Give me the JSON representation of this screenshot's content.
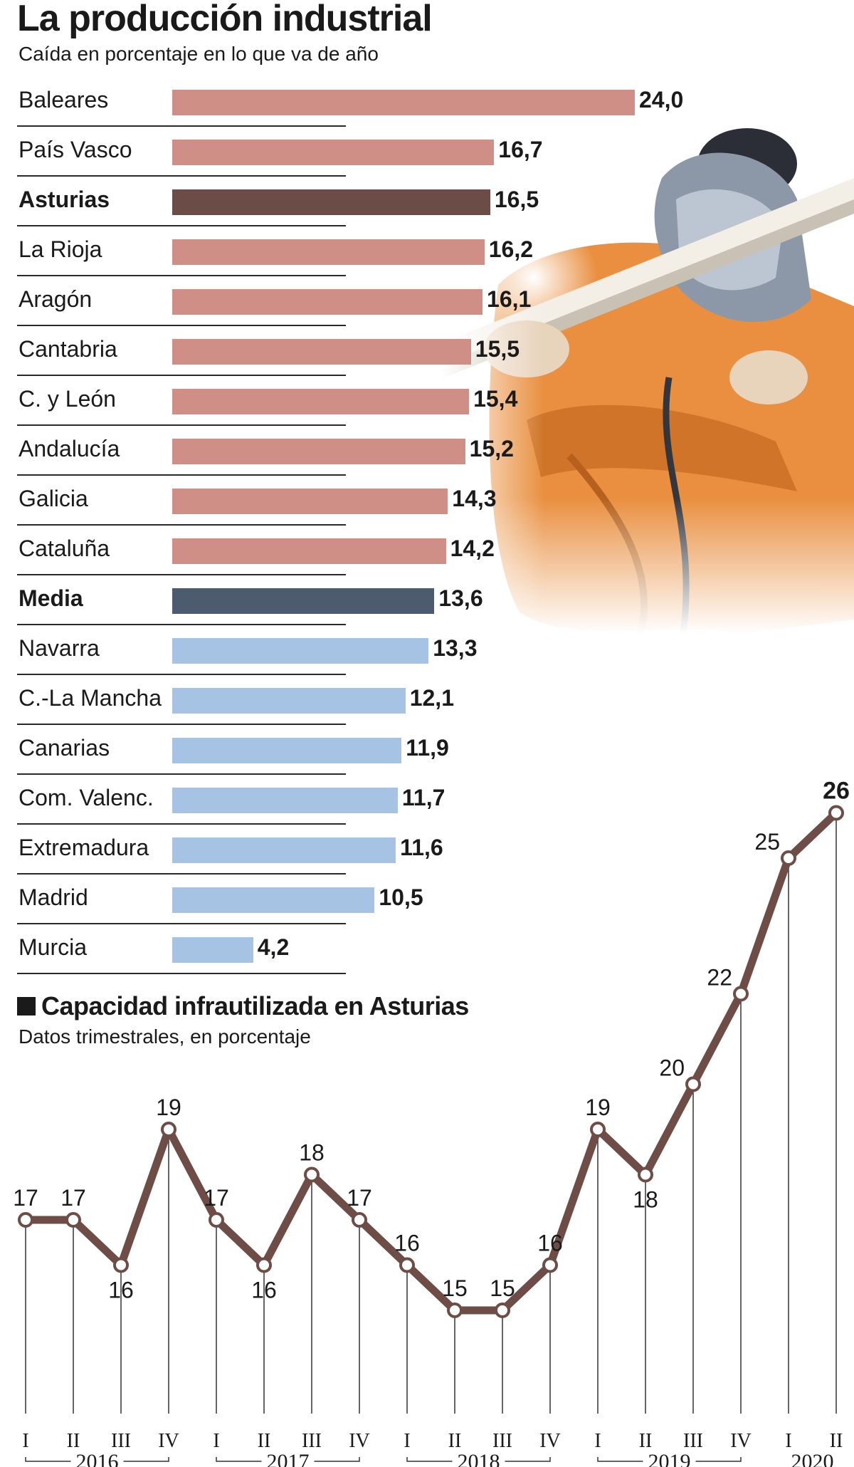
{
  "header": {
    "title": "La producción industrial",
    "subtitle": "Caída en porcentaje en lo que va de año"
  },
  "colors": {
    "above_average": "#cf8f87",
    "highlight": "#6b4c47",
    "average": "#4d5b6e",
    "below_average": "#a6c3e3",
    "line": "#6e4d46",
    "photo": "welder-photo"
  },
  "section2": {
    "title": "Capacidad infrautilizada en Asturias",
    "subtitle": "Datos trimestrales, en porcentaje"
  },
  "chart_data": [
    {
      "type": "bar",
      "orientation": "horizontal",
      "categories": [
        "Baleares",
        "País Vasco",
        "Asturias",
        "La Rioja",
        "Aragón",
        "Cantabria",
        "C. y León",
        "Andalucía",
        "Galicia",
        "Cataluña",
        "Media",
        "Navarra",
        "C.-La Mancha",
        "Canarias",
        "Com. Valenc.",
        "Extremadura",
        "Madrid",
        "Murcia"
      ],
      "values": [
        24.0,
        16.7,
        16.5,
        16.2,
        16.1,
        15.5,
        15.4,
        15.2,
        14.3,
        14.2,
        13.6,
        13.3,
        12.1,
        11.9,
        11.7,
        11.6,
        10.5,
        4.2
      ],
      "value_labels": [
        "24,0",
        "16,7",
        "16,5",
        "16,2",
        "16,1",
        "15,5",
        "15,4",
        "15,2",
        "14,3",
        "14,2",
        "13,6",
        "13,3",
        "12,1",
        "11,9",
        "11,7",
        "11,6",
        "10,5",
        "4,2"
      ],
      "highlighted": [
        "Asturias",
        "Media"
      ],
      "xlim": [
        0,
        24
      ],
      "grid": false
    },
    {
      "type": "line",
      "x": [
        "I",
        "II",
        "III",
        "IV",
        "I",
        "II",
        "III",
        "IV",
        "I",
        "II",
        "III",
        "IV",
        "I",
        "II",
        "III",
        "IV",
        "I",
        "II"
      ],
      "years": [
        {
          "label": "2016",
          "quarters": 4
        },
        {
          "label": "2017",
          "quarters": 4
        },
        {
          "label": "2018",
          "quarters": 4
        },
        {
          "label": "2019",
          "quarters": 4
        },
        {
          "label": "2020",
          "quarters": 2
        }
      ],
      "values": [
        17,
        17,
        16,
        19,
        17,
        16,
        18,
        17,
        16,
        15,
        15,
        16,
        19,
        18,
        20,
        22,
        25,
        26
      ],
      "label_position": [
        "above",
        "above",
        "below",
        "above",
        "above",
        "below",
        "above",
        "above",
        "above",
        "above",
        "above",
        "above",
        "above",
        "below",
        "above",
        "above",
        "above",
        "above"
      ],
      "ylim": [
        15,
        26
      ],
      "grid": false
    }
  ]
}
